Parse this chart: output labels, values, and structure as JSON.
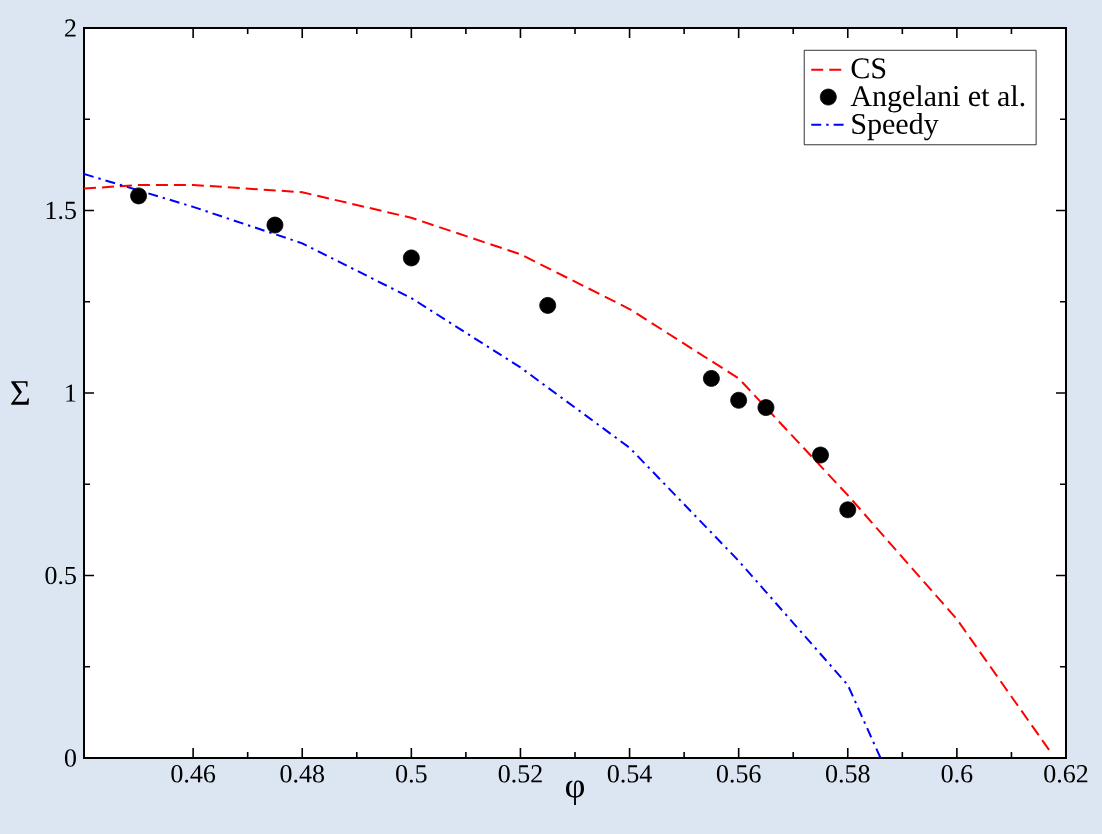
{
  "chart_data": {
    "type": "line",
    "xlabel": "φ",
    "ylabel": "Σ",
    "xlim": [
      0.44,
      0.62
    ],
    "ylim": [
      0,
      2
    ],
    "xticks": [
      0.46,
      0.48,
      0.5,
      0.52,
      0.54,
      0.56,
      0.58,
      0.6,
      0.62
    ],
    "yticks": [
      0,
      0.5,
      1,
      1.5,
      2
    ],
    "grid": false,
    "legend": "top right",
    "series": [
      {
        "name": "CS",
        "color": "#ff0000",
        "line_style": "dashed",
        "marker": "none",
        "x": [
          0.44,
          0.45,
          0.46,
          0.48,
          0.5,
          0.52,
          0.54,
          0.56,
          0.58,
          0.6,
          0.617
        ],
        "values": [
          1.56,
          1.57,
          1.57,
          1.55,
          1.48,
          1.38,
          1.23,
          1.04,
          0.72,
          0.38,
          0.02
        ]
      },
      {
        "name": "Angelani et al.",
        "type": "scatter",
        "color": "#000000",
        "marker": "circle",
        "x": [
          0.45,
          0.475,
          0.5,
          0.525,
          0.555,
          0.56,
          0.565,
          0.575,
          0.58
        ],
        "values": [
          1.54,
          1.46,
          1.37,
          1.24,
          1.04,
          0.98,
          0.96,
          0.83,
          0.68
        ]
      },
      {
        "name": "Speedy",
        "color": "#0000ff",
        "line_style": "dashdot",
        "marker": "none",
        "x": [
          0.44,
          0.46,
          0.48,
          0.5,
          0.52,
          0.54,
          0.56,
          0.58,
          0.586
        ],
        "values": [
          1.6,
          1.51,
          1.41,
          1.26,
          1.07,
          0.85,
          0.54,
          0.2,
          0
        ]
      }
    ]
  }
}
